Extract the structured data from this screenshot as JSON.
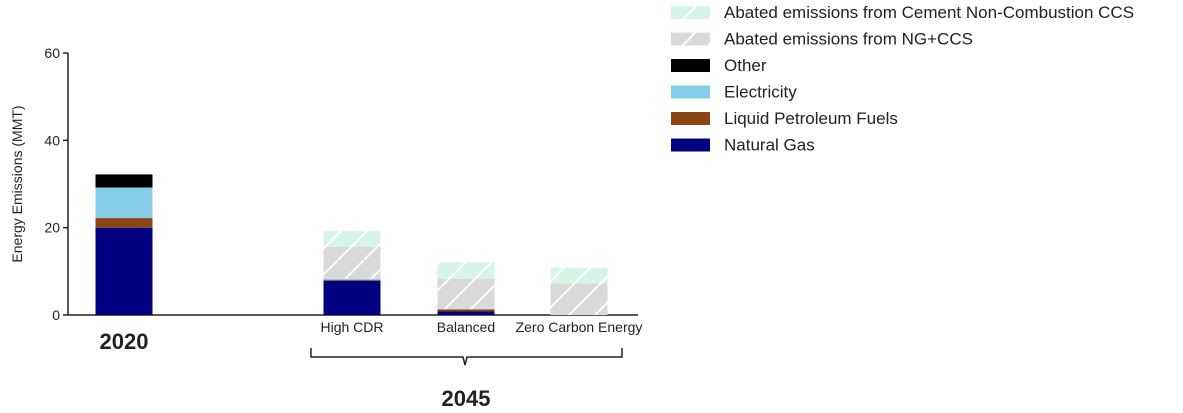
{
  "chart_data": {
    "type": "bar",
    "stacked": true,
    "ylabel": "Energy Emissions (MMT)",
    "ylim": [
      0,
      60
    ],
    "yticks": [
      0,
      20,
      40,
      60
    ],
    "categories": [
      "2020",
      "High CDR",
      "Balanced",
      "Zero Carbon Energy"
    ],
    "group_label": "2045",
    "legend_position": "top-right",
    "series": [
      {
        "name": "Natural Gas",
        "color": "#000080",
        "hatch": false,
        "values": [
          20,
          7.8,
          0.8,
          0
        ]
      },
      {
        "name": "Liquid Petroleum Fuels",
        "color": "#8B4513",
        "hatch": false,
        "values": [
          2.2,
          0.2,
          0.5,
          0
        ]
      },
      {
        "name": "Electricity",
        "color": "#87CEEB",
        "hatch": false,
        "values": [
          7,
          0.3,
          0,
          0
        ]
      },
      {
        "name": "Other",
        "color": "#000000",
        "hatch": false,
        "values": [
          3,
          0,
          0,
          0
        ]
      },
      {
        "name": "Abated emissions from NG+CCS",
        "color": "#d9d9d9",
        "hatch": true,
        "values": [
          0,
          7.3,
          7,
          7.2
        ]
      },
      {
        "name": "Abated emissions from Cement Non-Combustion CCS",
        "color": "#d6f5e6",
        "hatch": true,
        "values": [
          0,
          3.6,
          3.8,
          3.6
        ]
      }
    ]
  }
}
